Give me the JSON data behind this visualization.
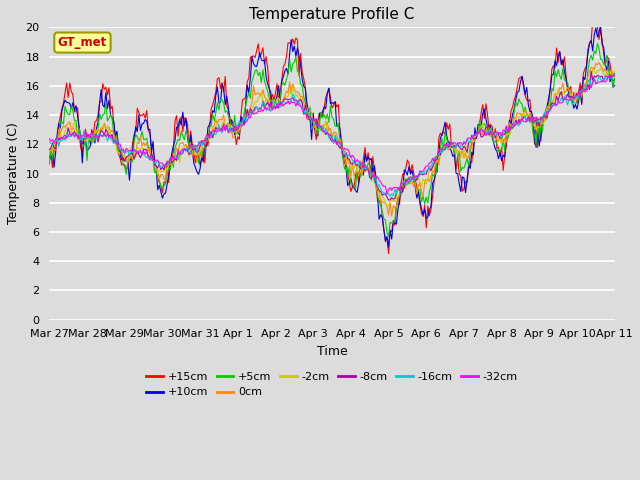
{
  "title": "Temperature Profile C",
  "xlabel": "Time",
  "ylabel": "Temperature (C)",
  "ylim": [
    0,
    20
  ],
  "yticks": [
    0,
    2,
    4,
    6,
    8,
    10,
    12,
    14,
    16,
    18,
    20
  ],
  "bg_color": "#dcdcdc",
  "plot_bg_color": "#dcdcdc",
  "grid_color": "#ffffff",
  "annotation_text": "GT_met",
  "annotation_bg": "#ffff99",
  "annotation_border": "#999900",
  "annotation_text_color": "#cc0000",
  "x_labels": [
    "Mar 27",
    "Mar 28",
    "Mar 29",
    "Mar 30",
    "Mar 31",
    "Apr 1",
    "Apr 2",
    "Apr 3",
    "Apr 4",
    "Apr 5",
    "Apr 6",
    "Apr 7",
    "Apr 8",
    "Apr 9",
    "Apr 10",
    "Apr 11"
  ],
  "series": [
    {
      "label": "+15cm",
      "color": "#ff0000"
    },
    {
      "label": "+10cm",
      "color": "#0000dd"
    },
    {
      "label": "+5cm",
      "color": "#00cc00"
    },
    {
      "label": "0cm",
      "color": "#ff8800"
    },
    {
      "label": "-2cm",
      "color": "#cccc00"
    },
    {
      "label": "-8cm",
      "color": "#aa00aa"
    },
    {
      "label": "-16cm",
      "color": "#00cccc"
    },
    {
      "label": "-32cm",
      "color": "#ff00ff"
    }
  ],
  "legend_ncol1": 6,
  "legend_ncol2": 2,
  "figsize": [
    6.4,
    4.8
  ],
  "dpi": 100
}
